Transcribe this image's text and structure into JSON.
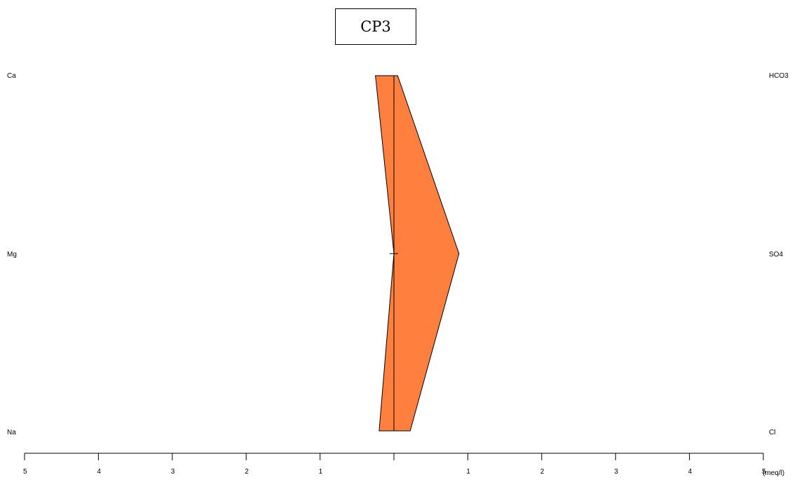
{
  "chart_data": {
    "type": "area",
    "title": "CP3",
    "chart_kind": "Stiff diagram",
    "unit": "(meq/l)",
    "cations": [
      {
        "name": "Ca",
        "value": 0.25
      },
      {
        "name": "Mg",
        "value": 0.0
      },
      {
        "name": "Na",
        "value": 0.2
      }
    ],
    "anions": [
      {
        "name": "HCO3",
        "value": 0.05
      },
      {
        "name": "SO4",
        "value": 0.88
      },
      {
        "name": "Cl",
        "value": 0.22
      }
    ],
    "x_ticks": [
      "5",
      "4",
      "3",
      "2",
      "1",
      "",
      "1",
      "2",
      "3",
      "4",
      "5"
    ],
    "xlim": [
      -5,
      5
    ],
    "fill_color": "#ff7f3f",
    "line_color": "#000000"
  }
}
